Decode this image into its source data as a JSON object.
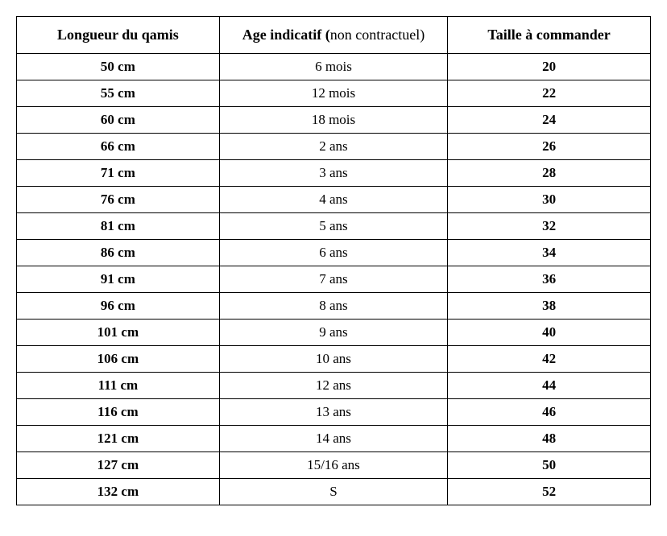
{
  "table": {
    "type": "table",
    "background_color": "#ffffff",
    "border_color": "#000000",
    "border_width": 1.5,
    "font_family": "Times New Roman",
    "header_font_size": 18,
    "cell_font_size": 17,
    "columns": [
      {
        "key": "length",
        "label": "Longueur du qamis",
        "bold": true,
        "width_pct": 32,
        "align": "center"
      },
      {
        "key": "age",
        "label_bold_part": "Age indicatif (",
        "label_normal_part": "non contractuel)",
        "bold": false,
        "width_pct": 36,
        "align": "center"
      },
      {
        "key": "size",
        "label": "Taille à commander",
        "bold": true,
        "width_pct": 32,
        "align": "center"
      }
    ],
    "rows": [
      {
        "length": "50 cm",
        "age": "6 mois",
        "size": "20"
      },
      {
        "length": "55 cm",
        "age": "12 mois",
        "size": "22"
      },
      {
        "length": "60 cm",
        "age": "18 mois",
        "size": "24"
      },
      {
        "length": "66 cm",
        "age": "2 ans",
        "size": "26"
      },
      {
        "length": "71 cm",
        "age": "3 ans",
        "size": "28"
      },
      {
        "length": "76 cm",
        "age": "4 ans",
        "size": "30"
      },
      {
        "length": "81 cm",
        "age": "5 ans",
        "size": "32"
      },
      {
        "length": "86 cm",
        "age": "6 ans",
        "size": "34"
      },
      {
        "length": "91 cm",
        "age": "7 ans",
        "size": "36"
      },
      {
        "length": "96 cm",
        "age": "8 ans",
        "size": "38"
      },
      {
        "length": "101 cm",
        "age": "9 ans",
        "size": "40"
      },
      {
        "length": "106 cm",
        "age": "10 ans",
        "size": "42"
      },
      {
        "length": "111 cm",
        "age": "12 ans",
        "size": "44"
      },
      {
        "length": "116 cm",
        "age": "13 ans",
        "size": "46"
      },
      {
        "length": "121 cm",
        "age": "14 ans",
        "size": "48"
      },
      {
        "length": "127 cm",
        "age": "15/16 ans",
        "size": "50"
      },
      {
        "length": "132 cm",
        "age": "S",
        "size": "52"
      }
    ]
  }
}
